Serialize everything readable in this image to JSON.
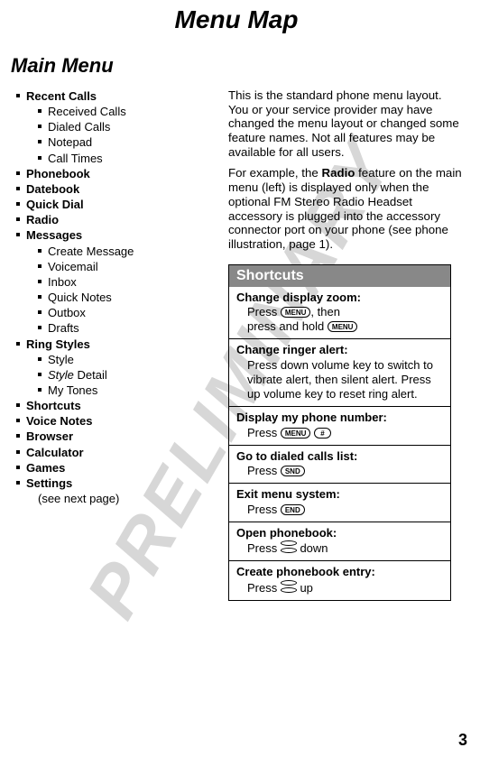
{
  "watermark": "PRELIMINARY",
  "page_title": "Menu Map",
  "section_title": "Main Menu",
  "page_number": "3",
  "menu": [
    {
      "label": "Recent Calls",
      "bold": true,
      "level": 0
    },
    {
      "label": "Received Calls",
      "bold": false,
      "level": 1
    },
    {
      "label": "Dialed Calls",
      "bold": false,
      "level": 1
    },
    {
      "label": "Notepad",
      "bold": false,
      "level": 1
    },
    {
      "label": "Call Times",
      "bold": false,
      "level": 1
    },
    {
      "label": "Phonebook",
      "bold": true,
      "level": 0
    },
    {
      "label": "Datebook",
      "bold": true,
      "level": 0
    },
    {
      "label": "Quick Dial",
      "bold": true,
      "level": 0
    },
    {
      "label": "Radio",
      "bold": true,
      "level": 0
    },
    {
      "label": "Messages",
      "bold": true,
      "level": 0
    },
    {
      "label": "Create Message",
      "bold": false,
      "level": 1
    },
    {
      "label": "Voicemail",
      "bold": false,
      "level": 1
    },
    {
      "label": "Inbox",
      "bold": false,
      "level": 1
    },
    {
      "label": "Quick Notes",
      "bold": false,
      "level": 1
    },
    {
      "label": "Outbox",
      "bold": false,
      "level": 1
    },
    {
      "label": "Drafts",
      "bold": false,
      "level": 1
    },
    {
      "label": "Ring Styles",
      "bold": true,
      "level": 0
    },
    {
      "label": "Style",
      "bold": false,
      "level": 1
    },
    {
      "label_html": "<span class=\"italic\">Style</span> Detail",
      "bold": false,
      "level": 1
    },
    {
      "label": "My Tones",
      "bold": false,
      "level": 1
    },
    {
      "label": "Shortcuts",
      "bold": true,
      "level": 0
    },
    {
      "label": "Voice Notes",
      "bold": true,
      "level": 0
    },
    {
      "label": "Browser",
      "bold": true,
      "level": 0
    },
    {
      "label": "Calculator",
      "bold": true,
      "level": 0
    },
    {
      "label": "Games",
      "bold": true,
      "level": 0
    },
    {
      "label": "Settings",
      "bold": true,
      "level": 0
    },
    {
      "label": "(see next page)",
      "bold": false,
      "level": 0,
      "note": true
    }
  ],
  "intro_paragraphs": [
    "This is the standard phone menu layout. You or your service provider may have changed the menu layout or changed some feature names. Not all features may be available for all users.",
    "For example, the <b>Radio</b> feature on the main menu (left) is displayed only when the optional FM Stereo Radio Headset accessory is plugged into the accessory connector port on your phone (see phone illustration, page 1)."
  ],
  "shortcuts_header": "Shortcuts",
  "shortcuts": [
    {
      "title": "Change display zoom:",
      "body": "Press <span class=\"key\">MENU</span>, then<br>press and hold <span class=\"key\">MENU</span>"
    },
    {
      "title": "Change ringer alert:",
      "body": "Press down volume key to switch to vibrate alert, then silent alert. Press up volume key to reset ring alert."
    },
    {
      "title": "Display my phone number:",
      "body": "Press <span class=\"key\">MENU</span> <span class=\"key\">&nbsp;#&nbsp;</span>"
    },
    {
      "title": "Go to dialed calls list:",
      "body": "Press <span class=\"key\">SND</span>"
    },
    {
      "title": "Exit menu system:",
      "body": "Press <span class=\"key\">END</span>"
    },
    {
      "title": "Open phonebook:",
      "body": "Press <span class=\"nav-key\"><span class=\"oval top\"></span><span class=\"oval bot\"></span></span> down"
    },
    {
      "title": "Create phonebook entry:",
      "body": "Press <span class=\"nav-key\"><span class=\"oval top\"></span><span class=\"oval bot\"></span></span> up"
    }
  ]
}
